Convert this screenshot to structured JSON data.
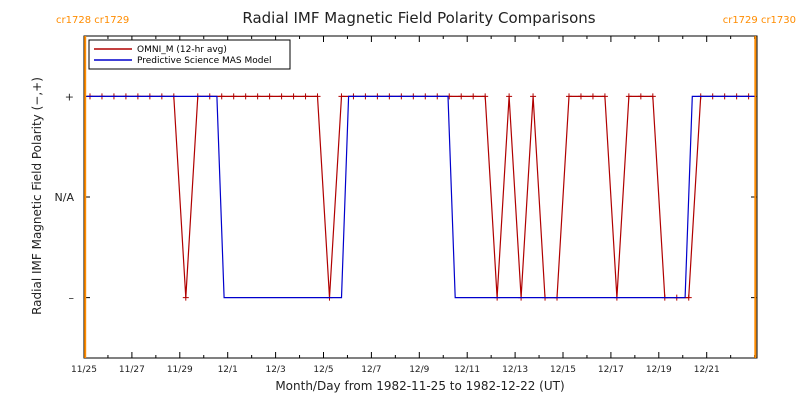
{
  "chart_data": {
    "type": "line",
    "title": "Radial IMF Magnetic Field Polarity Comparisons",
    "xlabel": "Month/Day from 1982-11-25 to 1982-12-22 (UT)",
    "ylabel": "Radial IMF Magnetic Field Polarity (−,+)",
    "x_tick_labels": [
      "11/25",
      "11/27",
      "11/29",
      "12/1",
      "12/3",
      "12/5",
      "12/7",
      "12/9",
      "12/11",
      "12/13",
      "12/15",
      "12/17",
      "12/19",
      "12/21"
    ],
    "x_tick_days": [
      0,
      2,
      4,
      6,
      8,
      10,
      12,
      14,
      16,
      18,
      20,
      22,
      24,
      26
    ],
    "xlim_days": [
      0,
      28.1
    ],
    "y_ticks": [
      {
        "value": 1,
        "label": "+"
      },
      {
        "value": 0,
        "label": "N/A"
      },
      {
        "value": -1,
        "label": "–"
      }
    ],
    "ylim": [
      -1.6,
      1.6
    ],
    "legend": {
      "placement": "top-left"
    },
    "carrington": [
      {
        "day": 0.05,
        "label": "cr1728 cr1729",
        "side": "left"
      },
      {
        "day": 28.03,
        "label": "cr1729 cr1730",
        "side": "right"
      }
    ],
    "series": [
      {
        "name": "OMNI_M (12-hr avg)",
        "color": "#b00000",
        "markers": true,
        "x": [
          0.25,
          0.75,
          1.25,
          1.75,
          2.25,
          2.75,
          3.25,
          3.75,
          4.25,
          4.75,
          5.25,
          5.75,
          6.25,
          6.75,
          7.25,
          7.75,
          8.25,
          8.75,
          9.25,
          9.75,
          10.25,
          10.75,
          11.25,
          11.75,
          12.25,
          12.75,
          13.25,
          13.75,
          14.25,
          14.75,
          15.25,
          15.75,
          16.25,
          16.75,
          17.25,
          17.75,
          18.25,
          18.75,
          19.25,
          19.75,
          20.25,
          20.75,
          21.25,
          21.75,
          22.25,
          22.75,
          23.25,
          23.75,
          24.25,
          24.75,
          25.25,
          25.75,
          26.25,
          26.75,
          27.25,
          27.75
        ],
        "y": [
          1,
          1,
          1,
          1,
          1,
          1,
          1,
          1,
          -1,
          1,
          1,
          1,
          1,
          1,
          1,
          1,
          1,
          1,
          1,
          1,
          -1,
          1,
          1,
          1,
          1,
          1,
          1,
          1,
          1,
          1,
          1,
          1,
          1,
          1,
          -1,
          1,
          -1,
          1,
          -1,
          -1,
          1,
          1,
          1,
          1,
          -1,
          1,
          1,
          1,
          -1,
          -1,
          -1,
          1,
          1,
          1,
          1,
          1
        ]
      },
      {
        "name": "Predictive Science MAS Model",
        "color": "#0000cc",
        "markers": false,
        "x": [
          0.1,
          5.55,
          5.85,
          10.75,
          11.05,
          15.2,
          15.5,
          25.1,
          25.4,
          28.0
        ],
        "y": [
          1,
          1,
          -1,
          -1,
          1,
          1,
          -1,
          -1,
          1,
          1
        ]
      }
    ]
  }
}
